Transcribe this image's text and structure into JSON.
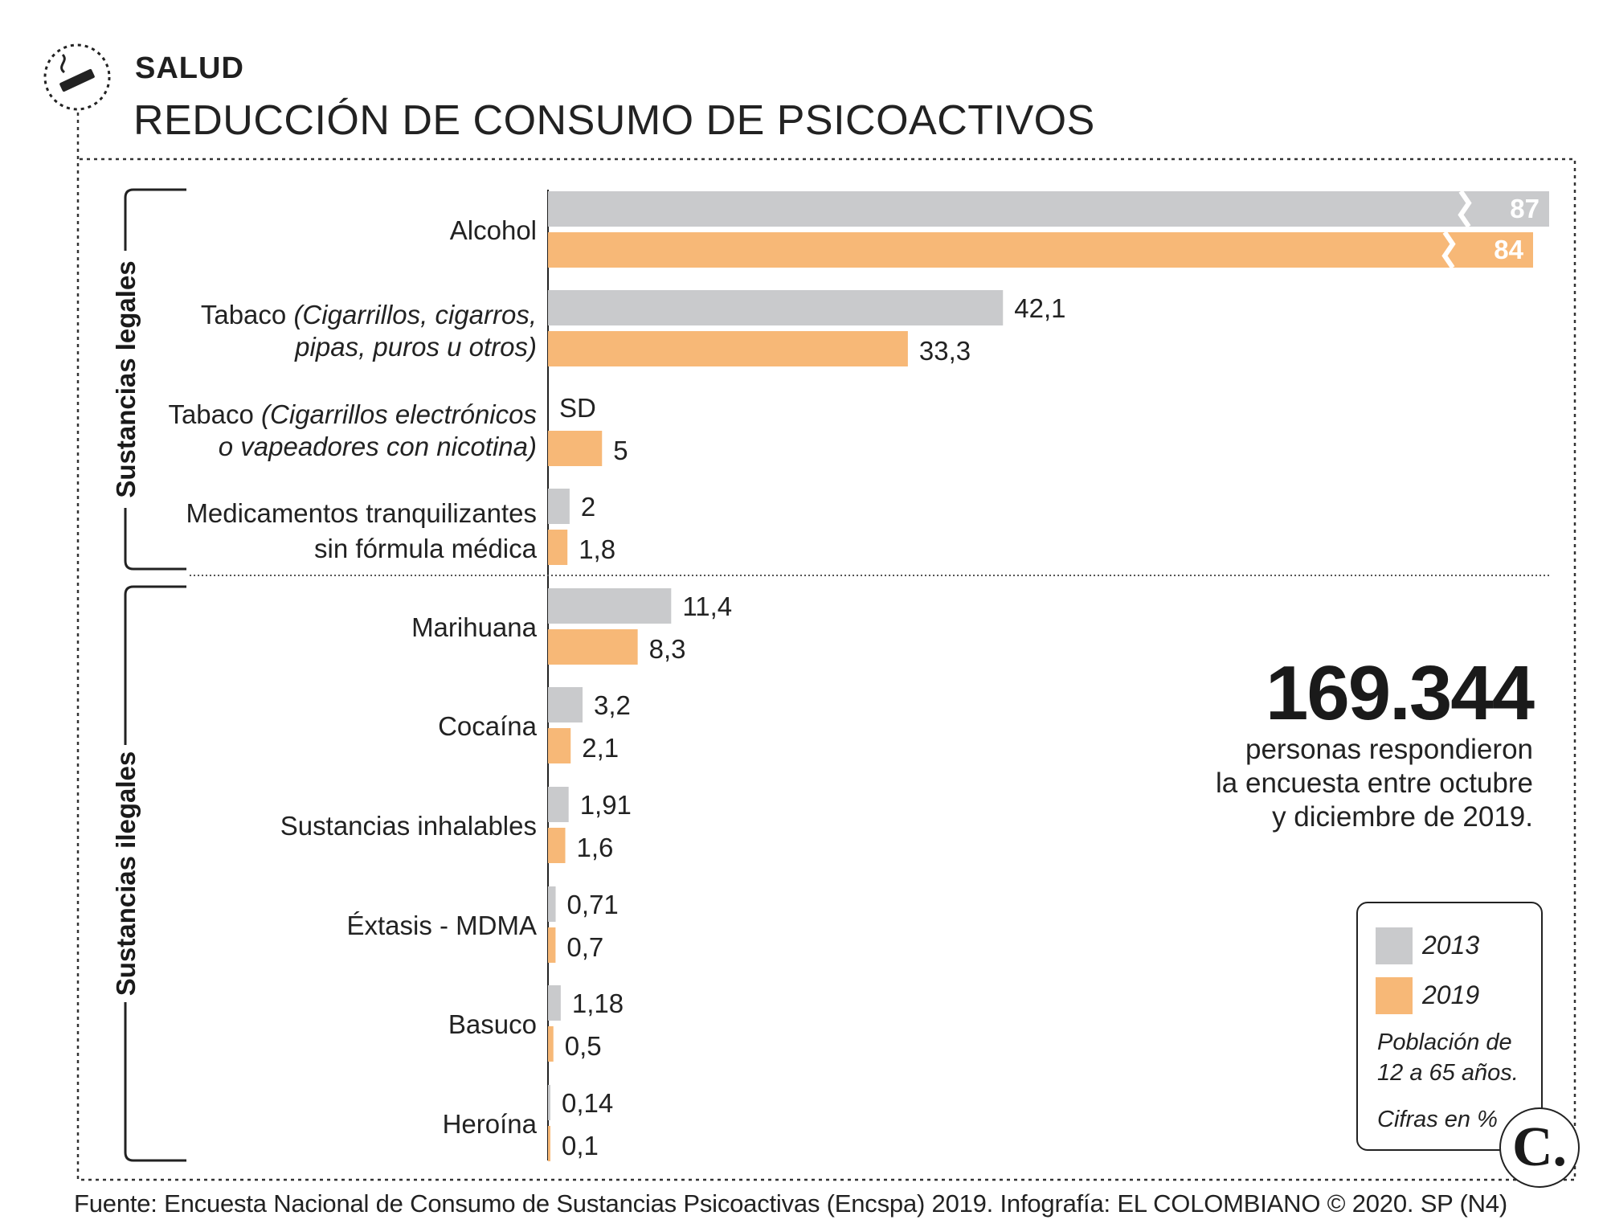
{
  "header": {
    "section": "SALUD",
    "title": "REDUCCIÓN DE CONSUMO DE PSICOACTIVOS",
    "icon": "cigarette-icon"
  },
  "groups": [
    {
      "label": "Sustancias legales"
    },
    {
      "label": "Sustancias ilegales"
    }
  ],
  "stat": {
    "value": "169.344",
    "lines": [
      "personas respondieron",
      "la encuesta entre octubre",
      "y diciembre de 2019."
    ]
  },
  "legend": {
    "items": [
      {
        "label": "2013",
        "color": "#c9cacc"
      },
      {
        "label": "2019",
        "color": "#f7b877"
      }
    ],
    "note_lines": [
      "Población de",
      "12 a 65 años."
    ],
    "units": "Cifras en %"
  },
  "footer": "Fuente: Encuesta Nacional de Consumo de Sustancias Psicoactivas (Encspa) 2019. Infografía: EL COLOMBIANO © 2020. SP (N4)",
  "logo": "C.",
  "chart_data": {
    "type": "bar",
    "orientation": "horizontal",
    "units": "%",
    "series": [
      {
        "name": "2013",
        "color": "#c9cacc"
      },
      {
        "name": "2019",
        "color": "#f7b877"
      }
    ],
    "categories": [
      {
        "group": 0,
        "label": [
          "Alcohol"
        ],
        "paren": [],
        "v2013": 87,
        "t2013": "87",
        "v2019": 84,
        "t2019": "84",
        "broken": true
      },
      {
        "group": 0,
        "label": [
          "Tabaco ",
          "pipas, puros u otros)"
        ],
        "paren": [
          "(Cigarrillos, cigarros,"
        ],
        "v2013": 42.1,
        "t2013": "42,1",
        "v2019": 33.3,
        "t2019": "33,3",
        "broken": false
      },
      {
        "group": 0,
        "label": [
          "Tabaco ",
          "o vapeadores con nicotina)"
        ],
        "paren": [
          "(Cigarrillos electrónicos"
        ],
        "v2013": null,
        "t2013": "SD",
        "v2019": 5,
        "t2019": "5",
        "broken": false
      },
      {
        "group": 0,
        "label": [
          "Medicamentos tranquilizantes",
          "sin fórmula médica"
        ],
        "paren": [],
        "v2013": 2,
        "t2013": "2",
        "v2019": 1.8,
        "t2019": "1,8",
        "broken": false
      },
      {
        "group": 1,
        "label": [
          "Marihuana"
        ],
        "paren": [],
        "v2013": 11.4,
        "t2013": "11,4",
        "v2019": 8.3,
        "t2019": "8,3",
        "broken": false
      },
      {
        "group": 1,
        "label": [
          "Cocaína"
        ],
        "paren": [],
        "v2013": 3.2,
        "t2013": "3,2",
        "v2019": 2.1,
        "t2019": "2,1",
        "broken": false
      },
      {
        "group": 1,
        "label": [
          "Sustancias inhalables"
        ],
        "paren": [],
        "v2013": 1.91,
        "t2013": "1,91",
        "v2019": 1.6,
        "t2019": "1,6",
        "broken": false
      },
      {
        "group": 1,
        "label": [
          "Éxtasis - MDMA"
        ],
        "paren": [],
        "v2013": 0.71,
        "t2013": "0,71",
        "v2019": 0.7,
        "t2019": "0,7",
        "broken": false
      },
      {
        "group": 1,
        "label": [
          "Basuco"
        ],
        "paren": [],
        "v2013": 1.18,
        "t2013": "1,18",
        "v2019": 0.5,
        "t2019": "0,5",
        "broken": false
      },
      {
        "group": 1,
        "label": [
          "Heroína"
        ],
        "paren": [],
        "v2013": 0.14,
        "t2013": "0,14",
        "v2019": 0.1,
        "t2019": "0,1",
        "broken": false
      }
    ]
  }
}
